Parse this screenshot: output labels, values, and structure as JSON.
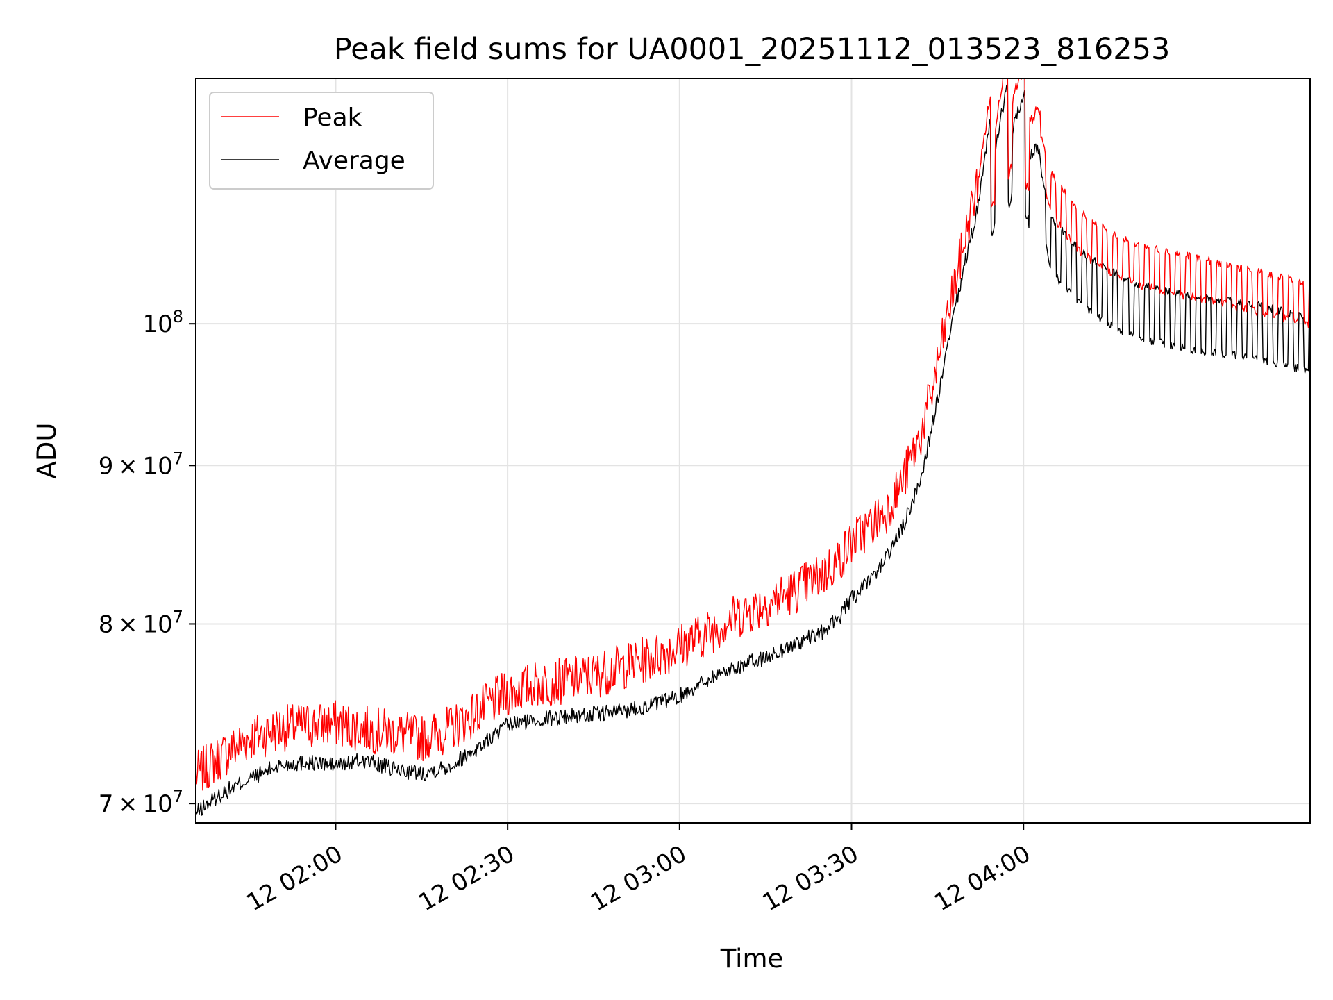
{
  "chart_data": {
    "type": "line",
    "title": "Peak field sums for UA0001_20251112_013523_816253",
    "xlabel": "Time",
    "ylabel": "ADU",
    "yscale": "log",
    "grid": true,
    "legend_position": "top-left",
    "xlim_minutes": [
      95.6,
      290.0
    ],
    "ylim": [
      69000000,
      120000000
    ],
    "x_ticks": [
      {
        "value": 120,
        "label": "12 02:00"
      },
      {
        "value": 150,
        "label": "12 02:30"
      },
      {
        "value": 180,
        "label": "12 03:00"
      },
      {
        "value": 210,
        "label": "12 03:30"
      },
      {
        "value": 240,
        "label": "12 04:00"
      }
    ],
    "y_ticks": [
      {
        "value": 70000000,
        "mantissa": "7",
        "exponent": "7"
      },
      {
        "value": 80000000,
        "mantissa": "8",
        "exponent": "7"
      },
      {
        "value": 90000000,
        "mantissa": "9",
        "exponent": "7"
      },
      {
        "value": 100000000,
        "mantissa": "",
        "exponent": "8"
      }
    ],
    "y_tick_base": "10",
    "y_tick_times": "×",
    "x_unit": "minutes since 2025-11-12 00:00",
    "series": [
      {
        "name": "Peak",
        "color": "#ff0000",
        "x": [
          95.6,
          100,
          105,
          110,
          115,
          120,
          125,
          130,
          135,
          140,
          145,
          150,
          155,
          160,
          165,
          170,
          175,
          180,
          185,
          190,
          195,
          200,
          205,
          208,
          210,
          213,
          216,
          219,
          222,
          224,
          226,
          228,
          230,
          232,
          234,
          236,
          238,
          240,
          242,
          245,
          250,
          255,
          260,
          265,
          270,
          275,
          280,
          285,
          290
        ],
        "values": [
          71500000,
          72500000,
          73500000,
          74000000,
          74200000,
          74300000,
          74000000,
          73800000,
          73500000,
          74000000,
          75000000,
          76000000,
          76500000,
          76700000,
          77000000,
          77500000,
          78000000,
          78700000,
          79500000,
          80500000,
          81200000,
          82000000,
          83000000,
          84000000,
          85000000,
          86000000,
          87000000,
          89000000,
          92000000,
          95000000,
          99000000,
          103000000,
          107000000,
          111000000,
          114000000,
          117000000,
          118000000,
          117000000,
          115000000,
          110000000,
          107000000,
          105500000,
          104500000,
          104000000,
          103500000,
          103000000,
          102500000,
          102000000,
          101500000
        ]
      },
      {
        "name": "Average",
        "color": "#000000",
        "x": [
          95.6,
          100,
          105,
          110,
          115,
          120,
          125,
          130,
          135,
          140,
          145,
          150,
          155,
          160,
          165,
          170,
          175,
          180,
          185,
          190,
          195,
          200,
          205,
          208,
          210,
          213,
          216,
          219,
          222,
          224,
          226,
          228,
          230,
          232,
          234,
          236,
          238,
          240,
          242,
          245,
          250,
          255,
          260,
          265,
          270,
          275,
          280,
          285,
          290
        ],
        "values": [
          69500000,
          70500000,
          71300000,
          72000000,
          72200000,
          72000000,
          72300000,
          71800000,
          71600000,
          72000000,
          73000000,
          74200000,
          74500000,
          74700000,
          74800000,
          75000000,
          75300000,
          75800000,
          76800000,
          77500000,
          78000000,
          78800000,
          79500000,
          80500000,
          81500000,
          82500000,
          84000000,
          86000000,
          89000000,
          92500000,
          96500000,
          101000000,
          105000000,
          109000000,
          112000000,
          114500000,
          115500000,
          114500000,
          112000000,
          106000000,
          103500000,
          102000000,
          101000000,
          100500000,
          100000000,
          99800000,
          99500000,
          99000000,
          98500000
        ]
      }
    ]
  }
}
